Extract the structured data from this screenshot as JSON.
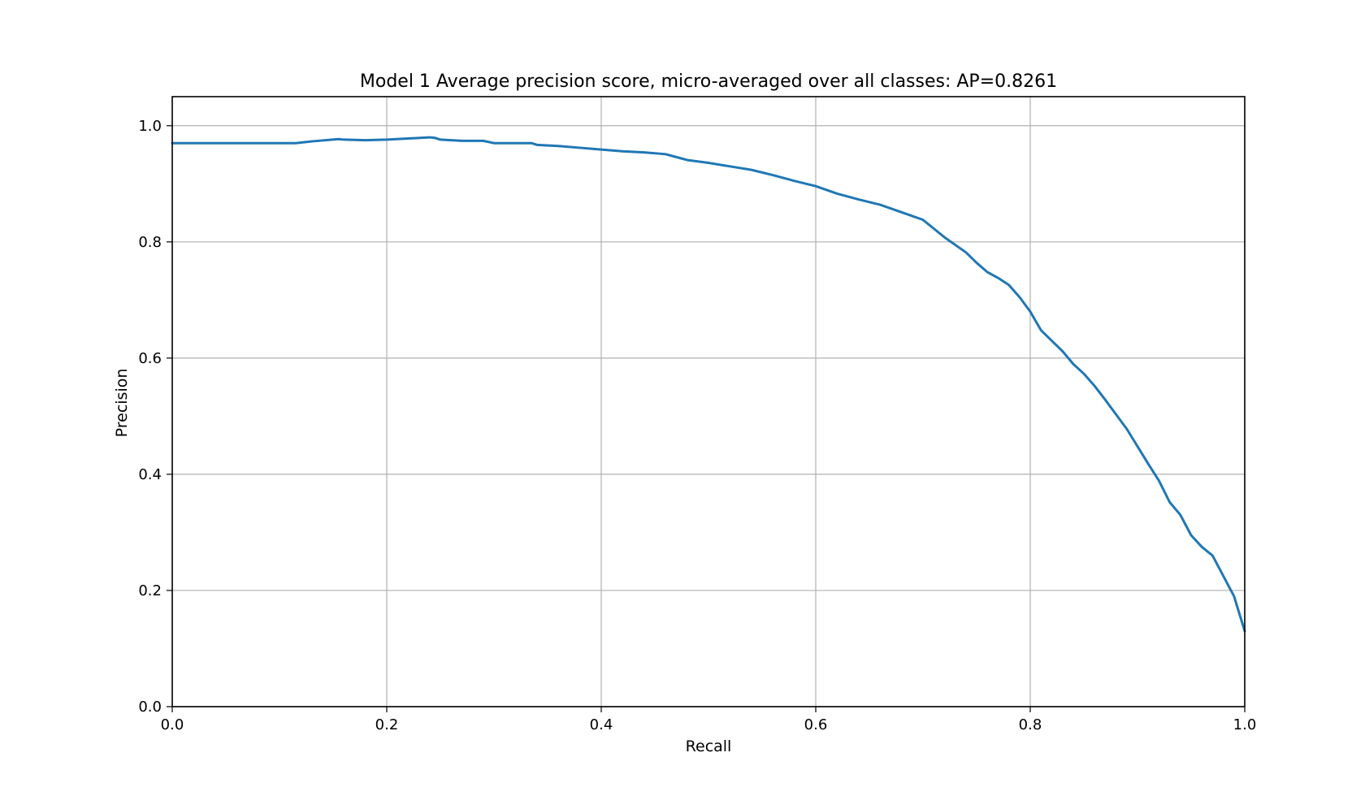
{
  "chart_data": {
    "type": "line",
    "title": "Model 1 Average precision score, micro-averaged over all classes: AP=0.8261",
    "xlabel": "Recall",
    "ylabel": "Precision",
    "xlim": [
      0.0,
      1.0
    ],
    "ylim": [
      0.0,
      1.05
    ],
    "xticks": [
      0.0,
      0.2,
      0.4,
      0.6,
      0.8,
      1.0
    ],
    "xtick_labels": [
      "0.0",
      "0.2",
      "0.4",
      "0.6",
      "0.8",
      "1.0"
    ],
    "yticks": [
      0.0,
      0.2,
      0.4,
      0.6,
      0.8,
      1.0
    ],
    "ytick_labels": [
      "0.0",
      "0.2",
      "0.4",
      "0.6",
      "0.8",
      "1.0"
    ],
    "grid": true,
    "series": [
      {
        "color": "#1f77b4",
        "x": [
          0.0,
          0.02,
          0.05,
          0.08,
          0.11,
          0.115,
          0.13,
          0.155,
          0.16,
          0.18,
          0.2,
          0.22,
          0.24,
          0.245,
          0.25,
          0.27,
          0.29,
          0.3,
          0.32,
          0.335,
          0.34,
          0.36,
          0.38,
          0.4,
          0.42,
          0.44,
          0.46,
          0.47,
          0.48,
          0.5,
          0.52,
          0.54,
          0.56,
          0.58,
          0.6,
          0.62,
          0.64,
          0.66,
          0.68,
          0.7,
          0.71,
          0.72,
          0.74,
          0.75,
          0.76,
          0.77,
          0.78,
          0.79,
          0.8,
          0.81,
          0.82,
          0.83,
          0.84,
          0.85,
          0.86,
          0.87,
          0.88,
          0.89,
          0.9,
          0.91,
          0.92,
          0.93,
          0.94,
          0.95,
          0.96,
          0.97,
          0.98,
          0.99,
          0.995,
          1.0
        ],
        "y": [
          0.97,
          0.97,
          0.97,
          0.97,
          0.97,
          0.97,
          0.973,
          0.977,
          0.976,
          0.975,
          0.976,
          0.978,
          0.98,
          0.979,
          0.976,
          0.974,
          0.974,
          0.97,
          0.97,
          0.97,
          0.967,
          0.965,
          0.962,
          0.959,
          0.956,
          0.954,
          0.951,
          0.946,
          0.941,
          0.936,
          0.93,
          0.924,
          0.915,
          0.905,
          0.896,
          0.883,
          0.873,
          0.864,
          0.851,
          0.838,
          0.823,
          0.808,
          0.782,
          0.764,
          0.748,
          0.738,
          0.726,
          0.705,
          0.68,
          0.648,
          0.63,
          0.612,
          0.59,
          0.573,
          0.552,
          0.528,
          0.503,
          0.478,
          0.448,
          0.418,
          0.389,
          0.352,
          0.33,
          0.295,
          0.275,
          0.26,
          0.225,
          0.19,
          0.16,
          0.13
        ]
      }
    ]
  }
}
